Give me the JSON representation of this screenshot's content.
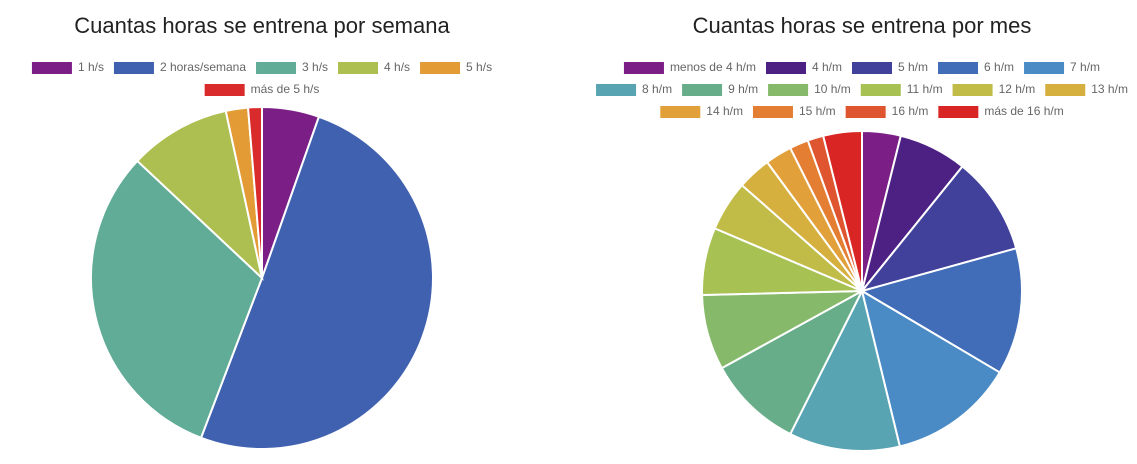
{
  "chart_data": [
    {
      "type": "pie",
      "title": "Cuantas horas se entrena por semana",
      "categories": [
        "1 h/s",
        "2 horas/semana",
        "3 h/s",
        "4 h/s",
        "5 h/s",
        "más de 5 h/s"
      ],
      "values": [
        5.4,
        50.4,
        31.2,
        9.6,
        2.1,
        1.3
      ],
      "colors": [
        "#7b1f86",
        "#4061b0",
        "#61ac97",
        "#adbf50",
        "#e39b35",
        "#d92b2b"
      ]
    },
    {
      "type": "pie",
      "title": "Cuantas horas se entrena por mes",
      "categories": [
        "menos de 4 h/m",
        "4 h/m",
        "5 h/m",
        "6 h/m",
        "7 h/m",
        "8 h/m",
        "9 h/m",
        "10 h/m",
        "11 h/m",
        "12 h/m",
        "13 h/m",
        "14 h/m",
        "15 h/m",
        "16 h/m",
        "más de 16 h/m"
      ],
      "values": [
        3.9,
        6.9,
        9.9,
        12.8,
        12.7,
        11.2,
        9.6,
        7.6,
        6.8,
        5.1,
        3.4,
        2.7,
        1.9,
        1.6,
        3.9
      ],
      "colors": [
        "#7b1f86",
        "#4d2184",
        "#41409a",
        "#406cb8",
        "#4a8bc6",
        "#58a4b2",
        "#67ad8a",
        "#86b96a",
        "#a7c152",
        "#c0bc47",
        "#d6b03e",
        "#e1a03a",
        "#e37e33",
        "#df5530",
        "#d92625"
      ]
    }
  ]
}
